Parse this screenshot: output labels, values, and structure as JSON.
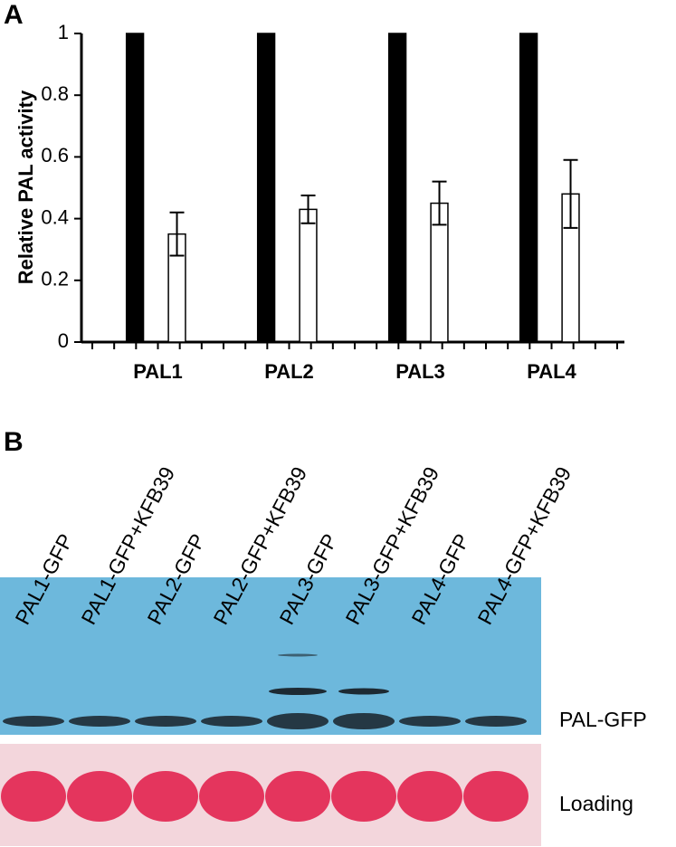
{
  "chart_data": {
    "type": "bar",
    "panel_label": "A",
    "ylabel": "Relative PAL activity",
    "categories": [
      "PAL1",
      "PAL2",
      "PAL3",
      "PAL4"
    ],
    "series": [
      {
        "color": "#000000",
        "values": [
          1,
          1,
          1,
          1
        ]
      },
      {
        "color": "#ffffff",
        "values": [
          0.35,
          0.43,
          0.45,
          0.48
        ],
        "errors": [
          0.07,
          0.045,
          0.07,
          0.11
        ]
      }
    ],
    "ylim": [
      0,
      1
    ],
    "yticks": [
      0,
      0.2,
      0.4,
      0.6,
      0.8,
      1
    ],
    "grid": false
  },
  "panel_b": {
    "panel_label": "B",
    "lanes": [
      "PAL1-GFP",
      "PAL1-GFP+KFB39",
      "PAL2-GFP",
      "PAL2-GFP+KFB39",
      "PAL3-GFP",
      "PAL3-GFP+KFB39",
      "PAL4-GFP",
      "PAL4-GFP+KFB39"
    ],
    "blot_labels": [
      "PAL-GFP",
      "Loading"
    ]
  }
}
